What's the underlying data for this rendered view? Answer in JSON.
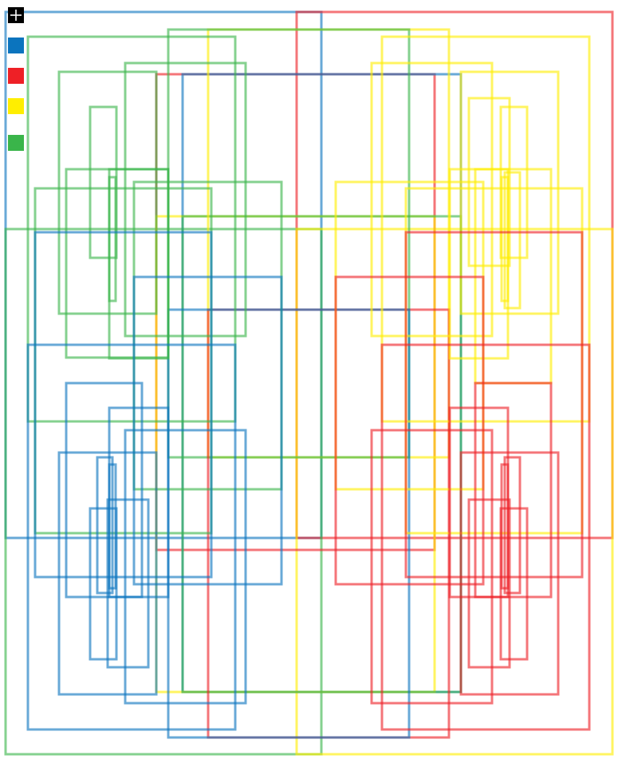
{
  "toolbar": {
    "add_icon": "plus-icon",
    "swatches": [
      {
        "id": "blue",
        "color": "#0b74be"
      },
      {
        "id": "red",
        "color": "#ee2026"
      },
      {
        "id": "yellow",
        "color": "#ffee00"
      },
      {
        "id": "green",
        "color": "#3ab54a"
      }
    ]
  },
  "colors": {
    "blue": "#0b74be",
    "red": "#ee2026",
    "yellow": "#ffee00",
    "green": "#3ab54a"
  }
}
